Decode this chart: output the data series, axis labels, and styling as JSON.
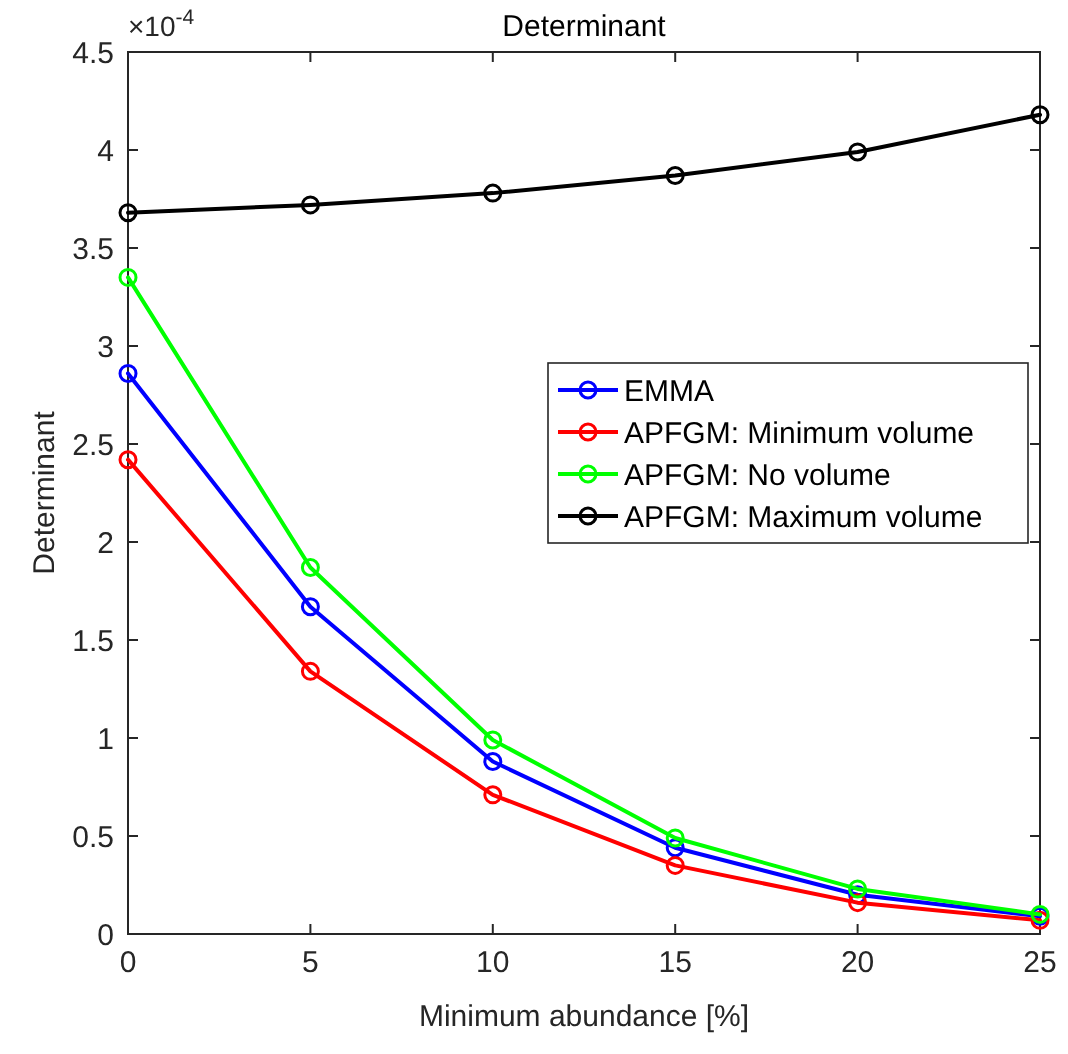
{
  "chart_data": {
    "type": "line",
    "title": "Determinant",
    "xlabel": "Minimum abundance [%]",
    "ylabel": "Determinant",
    "annotations": [
      "×10$^{-4}$"
    ],
    "x": [
      0,
      5,
      10,
      15,
      20,
      25
    ],
    "series": [
      {
        "name": "EMMA",
        "color": "#0000ff",
        "values": [
          2.86,
          1.67,
          0.88,
          0.44,
          0.2,
          0.09
        ]
      },
      {
        "name": "APFGM: Minimum volume",
        "color": "#ff0000",
        "values": [
          2.42,
          1.34,
          0.71,
          0.35,
          0.16,
          0.07
        ]
      },
      {
        "name": "APFGM: No volume",
        "color": "#00ff00",
        "values": [
          3.35,
          1.87,
          0.99,
          0.49,
          0.23,
          0.1
        ]
      },
      {
        "name": "APFGM: Maximum volume",
        "color": "#000000",
        "values": [
          3.68,
          3.72,
          3.78,
          3.87,
          3.99,
          4.18
        ]
      }
    ],
    "xlim": [
      0,
      25
    ],
    "xticks": [
      0,
      5,
      10,
      15,
      20,
      25
    ],
    "ylim": [
      0,
      4.5
    ],
    "yticks": [
      0,
      0.5,
      1,
      1.5,
      2,
      2.5,
      3,
      3.5,
      4,
      4.5
    ],
    "legend": "right",
    "marker": "circle",
    "line_style": "solid",
    "grid": false
  }
}
